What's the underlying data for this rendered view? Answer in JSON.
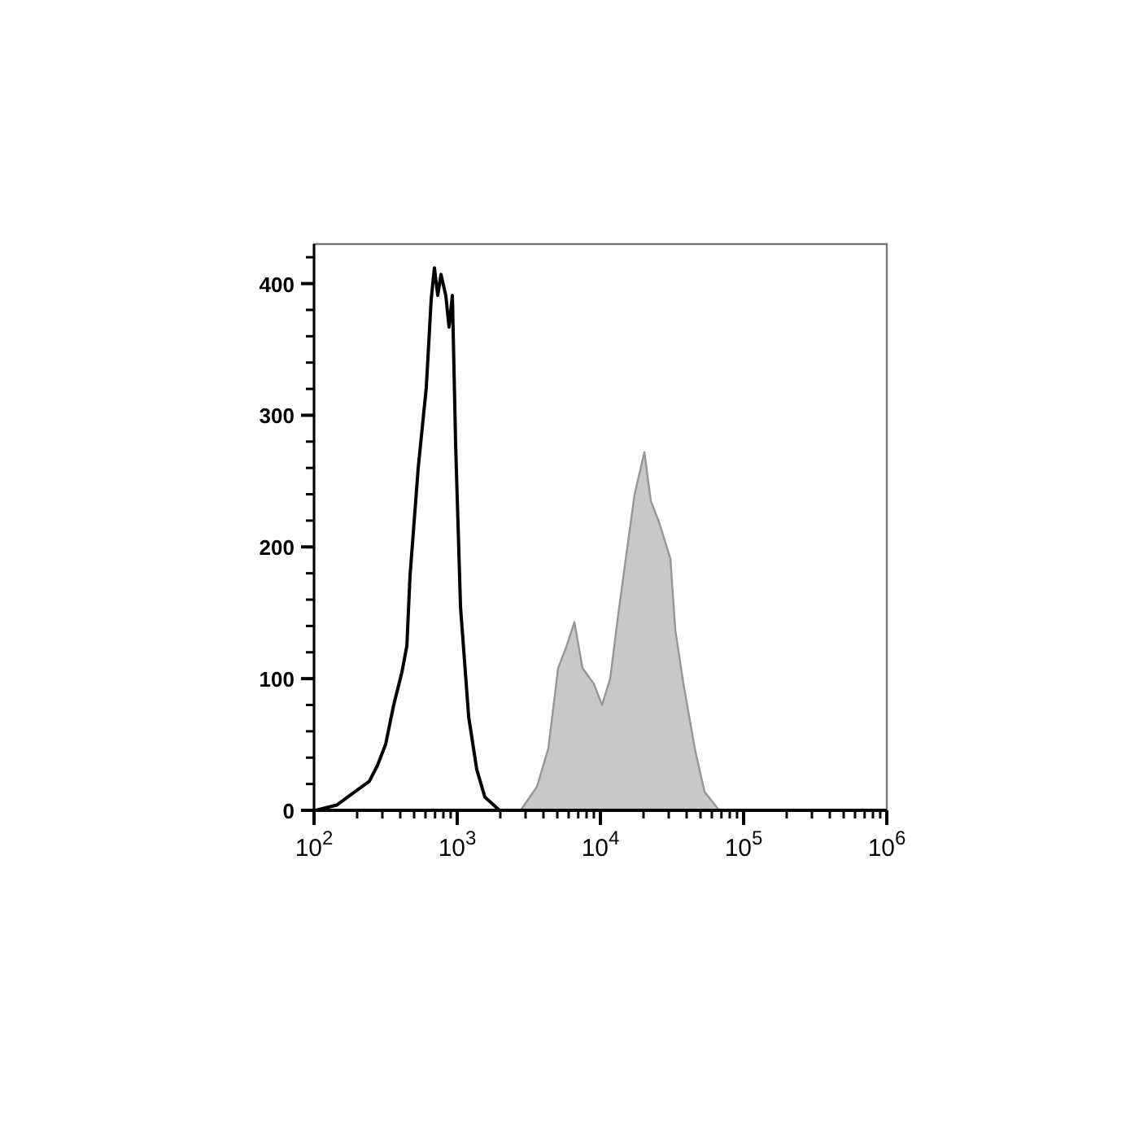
{
  "chart_data": {
    "type": "line",
    "log": "x",
    "xlim": [
      100,
      1000000
    ],
    "ylim": [
      0,
      430
    ],
    "xticks": [
      {
        "value": 100,
        "label": "10$^{2}$"
      },
      {
        "value": 200,
        "label": null
      },
      {
        "value": 300,
        "label": null
      },
      {
        "value": 400,
        "label": null
      },
      {
        "value": 500,
        "label": null
      },
      {
        "value": 600,
        "label": null
      },
      {
        "value": 700,
        "label": null
      },
      {
        "value": 800,
        "label": null
      },
      {
        "value": 900,
        "label": null
      },
      {
        "value": 1000,
        "label": "10$^{3}$"
      },
      {
        "value": 2000,
        "label": null
      },
      {
        "value": 3000,
        "label": null
      },
      {
        "value": 4000,
        "label": null
      },
      {
        "value": 5000,
        "label": null
      },
      {
        "value": 6000,
        "label": null
      },
      {
        "value": 7000,
        "label": null
      },
      {
        "value": 8000,
        "label": null
      },
      {
        "value": 9000,
        "label": null
      },
      {
        "value": 10000,
        "label": "10$^{4}$"
      },
      {
        "value": 20000,
        "label": null
      },
      {
        "value": 30000,
        "label": null
      },
      {
        "value": 40000,
        "label": null
      },
      {
        "value": 50000,
        "label": null
      },
      {
        "value": 60000,
        "label": null
      },
      {
        "value": 70000,
        "label": null
      },
      {
        "value": 80000,
        "label": null
      },
      {
        "value": 90000,
        "label": null
      },
      {
        "value": 100000,
        "label": "10$^{5}$"
      },
      {
        "value": 200000,
        "label": null
      },
      {
        "value": 300000,
        "label": null
      },
      {
        "value": 400000,
        "label": null
      },
      {
        "value": 500000,
        "label": null
      },
      {
        "value": 600000,
        "label": null
      },
      {
        "value": 700000,
        "label": null
      },
      {
        "value": 800000,
        "label": null
      },
      {
        "value": 900000,
        "label": null
      },
      {
        "value": 1000000,
        "label": "10$^{6}$"
      }
    ],
    "yticks": [
      0,
      {
        "value": 20,
        "label": null
      },
      {
        "value": 40,
        "label": null
      },
      {
        "value": 60,
        "label": null
      },
      {
        "value": 80,
        "label": null
      },
      100,
      {
        "value": 120,
        "label": null
      },
      {
        "value": 140,
        "label": null
      },
      {
        "value": 160,
        "label": null
      },
      {
        "value": 180,
        "label": null
      },
      200,
      {
        "value": 220,
        "label": null
      },
      {
        "value": 240,
        "label": null
      },
      {
        "value": 260,
        "label": null
      },
      {
        "value": 280,
        "label": null
      },
      300,
      {
        "value": 320,
        "label": null
      },
      {
        "value": 340,
        "label": null
      },
      {
        "value": 360,
        "label": null
      },
      {
        "value": 380,
        "label": null
      },
      400,
      {
        "value": 420,
        "label": null
      }
    ],
    "grid": false,
    "series": [
      {
        "type": "area",
        "color": "#c8c8c8",
        "x": [
          2773,
          3606,
          4328,
          5066,
          5768,
          6579,
          7500,
          9013,
          10260,
          11700,
          13330,
          15200,
          17330,
          20280,
          22500,
          25650,
          30830,
          33340,
          38020,
          45630,
          53380,
          67560
        ],
        "values": [
          0,
          18,
          47,
          108,
          124,
          143,
          108,
          96,
          80,
          100,
          149,
          195,
          240,
          272,
          235,
          219,
          191,
          137,
          96,
          47,
          14,
          0
        ]
      },
      {
        "color": "#000000",
        "x": [
          103,
          144,
          187,
          243,
          277,
          316,
          360,
          411,
          445,
          468,
          481,
          534,
          608,
          658,
          693,
          731,
          770,
          832,
          877,
          925,
          975,
          1055,
          1202,
          1369,
          1561,
          1974,
          2563,
          10000,
          1000000
        ],
        "values": [
          0,
          4,
          13,
          22,
          34,
          50,
          80,
          105,
          125,
          178,
          195,
          260,
          321,
          388,
          412,
          391,
          407,
          391,
          367,
          391,
          277,
          154,
          71,
          31,
          10,
          0,
          0,
          0,
          0
        ]
      }
    ]
  }
}
